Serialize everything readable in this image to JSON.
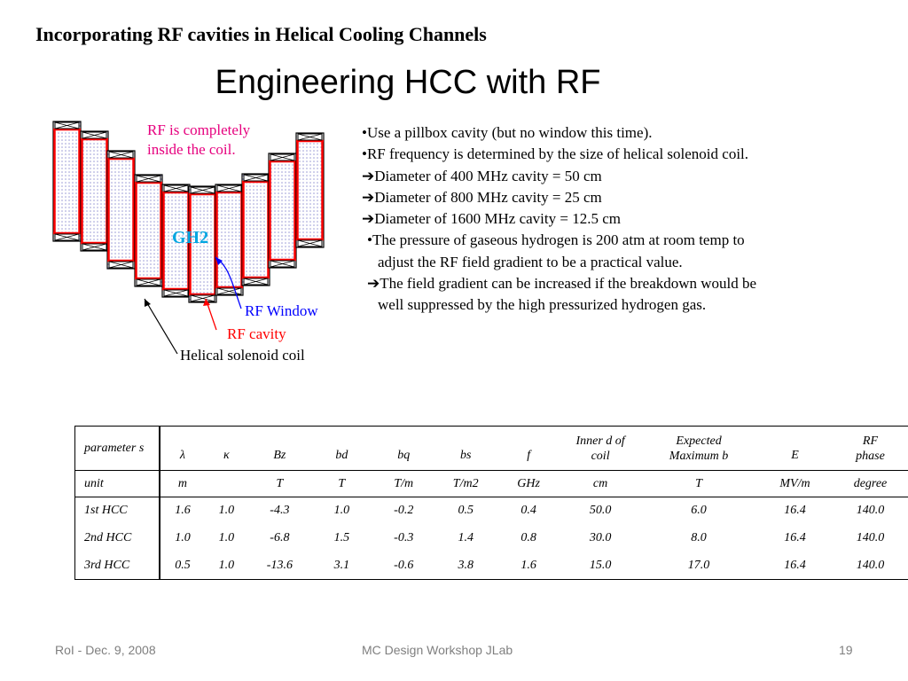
{
  "header": {
    "top_title": "Incorporating RF cavities in Helical Cooling Channels",
    "main_title": "Engineering HCC with RF"
  },
  "diagram": {
    "annotation_rf_inside_line1": "RF is completely",
    "annotation_rf_inside_line2": "inside the coil.",
    "gas_label": "GH2",
    "rf_window_label": "RF Window",
    "rf_cavity_label": "RF cavity",
    "coil_label": "Helical solenoid coil",
    "colors": {
      "cavity": "#ff0000",
      "gas_label": "#00a6e0",
      "window": "#0000ff",
      "annotation": "#e6007e"
    }
  },
  "bullets": [
    "•Use a pillbox cavity (but no window this time).",
    "•RF frequency is determined by the size of helical solenoid coil.",
    "➔Diameter of 400 MHz cavity = 50 cm",
    "➔Diameter of 800 MHz cavity = 25 cm",
    "➔Diameter of 1600 MHz cavity = 12.5 cm",
    "•The pressure of gaseous hydrogen is 200 atm at room temp to",
    "adjust the RF field gradient to be a practical value.",
    "➔The field gradient can be increased if the breakdown would be",
    "well suppressed by the high pressurized hydrogen gas."
  ],
  "table": {
    "headers": [
      "parameter s",
      "λ",
      "κ",
      "Bz",
      "bd",
      "bq",
      "bs",
      "f",
      "Inner d of coil",
      "Expected Maximum b",
      "E",
      "RF phase"
    ],
    "units": [
      "unit",
      "m",
      "",
      "T",
      "T",
      "T/m",
      "T/m2",
      "GHz",
      "cm",
      "T",
      "MV/m",
      "degree"
    ],
    "rows": [
      [
        "1st HCC",
        "1.6",
        "1.0",
        "-4.3",
        "1.0",
        "-0.2",
        "0.5",
        "0.4",
        "50.0",
        "6.0",
        "16.4",
        "140.0"
      ],
      [
        "2nd HCC",
        "1.0",
        "1.0",
        "-6.8",
        "1.5",
        "-0.3",
        "1.4",
        "0.8",
        "30.0",
        "8.0",
        "16.4",
        "140.0"
      ],
      [
        "3rd HCC",
        "0.5",
        "1.0",
        "-13.6",
        "3.1",
        "-0.6",
        "3.8",
        "1.6",
        "15.0",
        "17.0",
        "16.4",
        "140.0"
      ]
    ]
  },
  "footer": {
    "left": "RoI - Dec. 9, 2008",
    "center": "MC Design Workshop JLab",
    "page": "19"
  }
}
